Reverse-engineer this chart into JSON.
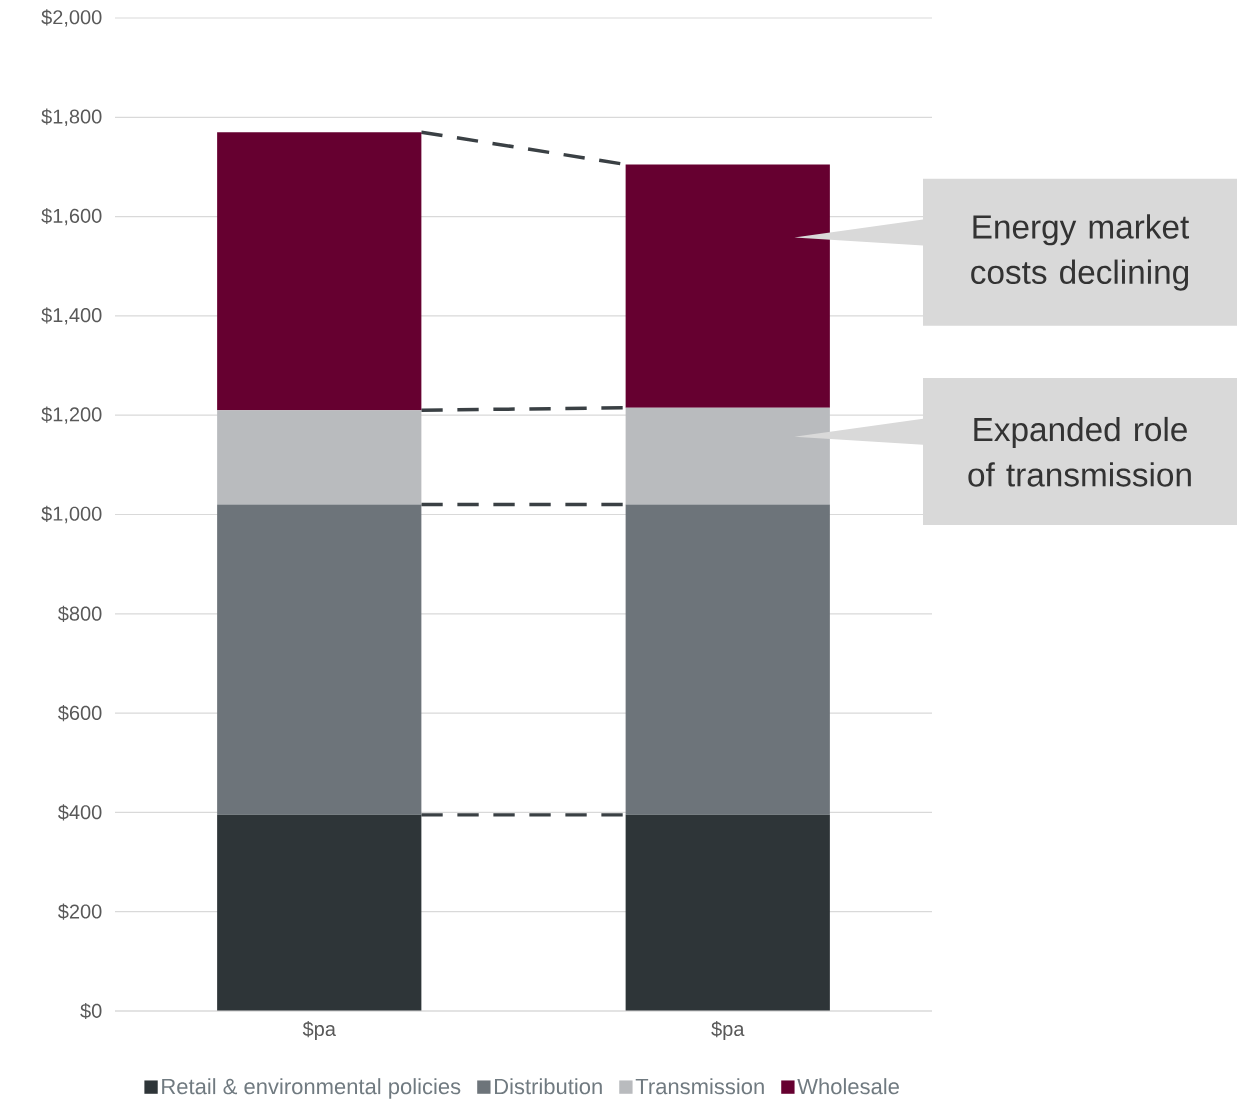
{
  "chart_data": {
    "type": "bar",
    "stacked": true,
    "categories": [
      "$pa",
      "$pa"
    ],
    "series": [
      {
        "name": "Retail & environmental policies",
        "color": "#2e3538",
        "values": [
          395,
          395
        ]
      },
      {
        "name": "Distribution",
        "color": "#6d747a",
        "values": [
          625,
          625
        ]
      },
      {
        "name": "Transmission",
        "color": "#b9bbbe",
        "values": [
          190,
          195
        ]
      },
      {
        "name": "Wholesale",
        "color": "#660030",
        "values": [
          560,
          490
        ]
      }
    ],
    "ylim": [
      0,
      2000
    ],
    "yticks": [
      {
        "value": 0,
        "label": "$0"
      },
      {
        "value": 200,
        "label": "$200"
      },
      {
        "value": 400,
        "label": "$400"
      },
      {
        "value": 600,
        "label": "$600"
      },
      {
        "value": 800,
        "label": "$800"
      },
      {
        "value": 1000,
        "label": "$1,000"
      },
      {
        "value": 1200,
        "label": "$1,200"
      },
      {
        "value": 1400,
        "label": "$1,400"
      },
      {
        "value": 1600,
        "label": "$1,600"
      },
      {
        "value": 1800,
        "label": "$1,800"
      },
      {
        "value": 2000,
        "label": "$2,000"
      }
    ],
    "grid": "y",
    "legend": "bottom",
    "annotations": [
      "Energy market costs declining",
      "Expanded role of transmission"
    ]
  }
}
